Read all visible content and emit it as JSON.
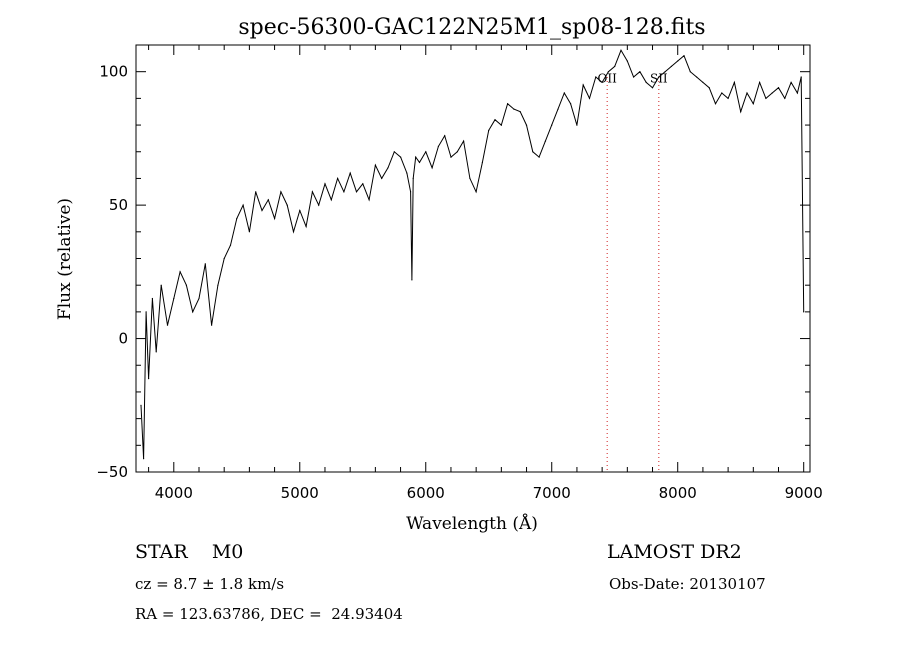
{
  "chart_data": {
    "type": "line",
    "title": "spec-56300-GAC122N25M1_sp08-128.fits",
    "xlabel": "Wavelength (Å)",
    "ylabel": "Flux (relative)",
    "xlim": [
      3700,
      9050
    ],
    "ylim": [
      -50,
      110
    ],
    "xticks": [
      4000,
      5000,
      6000,
      7000,
      8000,
      9000
    ],
    "yticks": [
      -50,
      0,
      50,
      100
    ],
    "ytick_labels": [
      "−50",
      "0",
      "50",
      "100"
    ],
    "grid": false,
    "line_color": "#000000",
    "series": [
      {
        "x": [
          3740,
          3760,
          3780,
          3800,
          3830,
          3860,
          3900,
          3950,
          4000,
          4050,
          4100,
          4150,
          4200,
          4250,
          4300,
          4350,
          4400,
          4450,
          4500,
          4550,
          4600,
          4650,
          4700,
          4750,
          4800,
          4850,
          4900,
          4950,
          5000,
          5050,
          5100,
          5150,
          5200,
          5250,
          5300,
          5350,
          5400,
          5450,
          5500,
          5550,
          5600,
          5650,
          5700,
          5750,
          5800,
          5850,
          5880,
          5890,
          5900,
          5920,
          5950,
          6000,
          6050,
          6100,
          6150,
          6200,
          6250,
          6300,
          6350,
          6400,
          6450,
          6500,
          6550,
          6600,
          6650,
          6700,
          6750,
          6800,
          6850,
          6900,
          6950,
          7000,
          7050,
          7100,
          7150,
          7200,
          7250,
          7300,
          7350,
          7400,
          7450,
          7500,
          7550,
          7600,
          7650,
          7700,
          7750,
          7800,
          7850,
          7900,
          7950,
          8000,
          8050,
          8100,
          8150,
          8200,
          8250,
          8300,
          8350,
          8400,
          8450,
          8500,
          8550,
          8600,
          8650,
          8700,
          8750,
          8800,
          8850,
          8900,
          8950,
          8980,
          9000
        ],
        "y": [
          -25,
          -45,
          10,
          -15,
          15,
          -5,
          20,
          5,
          15,
          25,
          20,
          10,
          15,
          28,
          5,
          20,
          30,
          35,
          45,
          50,
          40,
          55,
          48,
          52,
          45,
          55,
          50,
          40,
          48,
          42,
          55,
          50,
          58,
          52,
          60,
          55,
          62,
          55,
          58,
          52,
          65,
          60,
          64,
          70,
          68,
          62,
          55,
          22,
          60,
          68,
          66,
          70,
          64,
          72,
          76,
          68,
          70,
          74,
          60,
          55,
          66,
          78,
          82,
          80,
          88,
          86,
          85,
          80,
          70,
          68,
          74,
          80,
          86,
          92,
          88,
          80,
          95,
          90,
          98,
          96,
          100,
          102,
          108,
          104,
          98,
          100,
          96,
          94,
          98,
          100,
          102,
          104,
          106,
          100,
          98,
          96,
          94,
          88,
          92,
          90,
          96,
          85,
          92,
          88,
          96,
          90,
          92,
          94,
          90,
          96,
          92,
          98,
          10
        ]
      }
    ],
    "vlines": [
      {
        "x": 7440,
        "label": "OII",
        "color": "#d02020",
        "style": "dotted"
      },
      {
        "x": 7850,
        "label": "SII",
        "color": "#d02020",
        "style": "dotted"
      }
    ]
  },
  "info": {
    "class_label": "STAR    M0",
    "survey": "LAMOST DR2",
    "cz": "cz = 8.7 ± 1.8 km/s",
    "obs_date": "Obs-Date: 20130107",
    "coords": "RA = 123.63786, DEC =  24.93404"
  }
}
